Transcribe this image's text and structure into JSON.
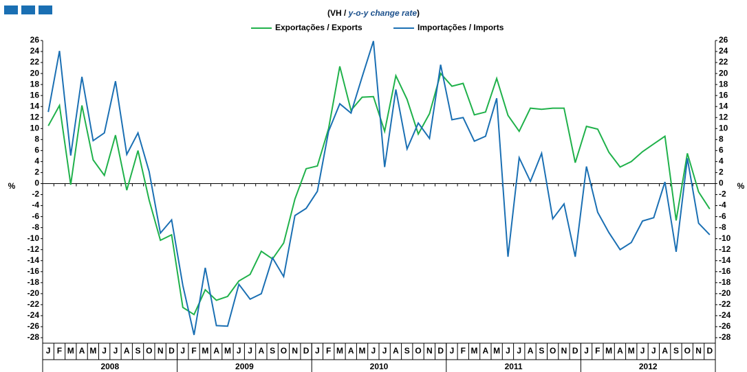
{
  "chart_data": {
    "type": "line",
    "subtitle": [
      "(VH / ",
      "y-o-y change rate",
      ")"
    ],
    "ylabel": "%",
    "y2label": "%",
    "categories": [
      "J",
      "F",
      "M",
      "A",
      "M",
      "J",
      "J",
      "A",
      "S",
      "O",
      "N",
      "D",
      "J",
      "F",
      "M",
      "A",
      "M",
      "J",
      "J",
      "A",
      "S",
      "O",
      "N",
      "D",
      "J",
      "F",
      "M",
      "A",
      "M",
      "J",
      "J",
      "A",
      "S",
      "O",
      "N",
      "D",
      "J",
      "F",
      "M",
      "A",
      "M",
      "J",
      "J",
      "A",
      "S",
      "O",
      "N",
      "D",
      "J",
      "F",
      "M",
      "A",
      "M",
      "J",
      "J",
      "A",
      "S",
      "O",
      "N",
      "D"
    ],
    "years": [
      "2008",
      "2009",
      "2010",
      "2011",
      "2012"
    ],
    "series": [
      {
        "name": "Exportações / Exports",
        "color": "#1fb14a",
        "values": [
          10.5,
          14.2,
          -0.2,
          14.2,
          4.3,
          1.5,
          8.8,
          -1.2,
          6.0,
          -3.0,
          -10.3,
          -9.3,
          -22.5,
          -23.8,
          -19.3,
          -21.2,
          -20.5,
          -17.7,
          -16.5,
          -12.3,
          -13.7,
          -10.8,
          -2.8,
          2.7,
          3.2,
          10.0,
          21.3,
          13.3,
          15.7,
          15.8,
          9.5,
          19.6,
          15.3,
          9.0,
          12.7,
          20.0,
          17.7,
          18.2,
          12.5,
          13.0,
          19.1,
          12.4,
          9.5,
          13.7,
          13.5,
          13.7,
          13.7,
          3.8,
          10.4,
          9.9,
          5.7,
          3.0,
          4.0,
          5.8,
          7.2,
          8.6,
          -6.7,
          5.5,
          -1.5,
          -4.6
        ]
      },
      {
        "name": "Importações / Imports",
        "color": "#1a6fb3",
        "values": [
          13.0,
          24.1,
          5.1,
          19.4,
          7.8,
          9.2,
          18.6,
          5.3,
          9.2,
          2.2,
          -9.0,
          -6.6,
          -18.5,
          -27.5,
          -15.3,
          -25.8,
          -25.9,
          -18.3,
          -21.0,
          -20.0,
          -13.5,
          -16.9,
          -5.8,
          -4.5,
          -1.4,
          9.5,
          14.5,
          12.8,
          19.4,
          25.9,
          3.0,
          17.1,
          6.3,
          11.0,
          8.2,
          21.6,
          11.6,
          12.0,
          7.7,
          8.6,
          15.5,
          -13.3,
          4.7,
          0.4,
          5.5,
          -6.4,
          -3.7,
          -13.3,
          3.1,
          -5.2,
          -8.9,
          -12.0,
          -10.7,
          -6.8,
          -6.2,
          0.3,
          -12.4,
          4.6,
          -7.2,
          -9.3
        ]
      }
    ],
    "ylim": [
      -28,
      26
    ],
    "yticks": [
      -28,
      -26,
      -24,
      -22,
      -20,
      -18,
      -16,
      -14,
      -12,
      -10,
      -8,
      -6,
      -4,
      -2,
      0,
      2,
      4,
      6,
      8,
      10,
      12,
      14,
      16,
      18,
      20,
      22,
      24,
      26
    ],
    "y2lim": [
      -28,
      26
    ],
    "y2ticks": [
      -28,
      -26,
      -24,
      -22,
      -20,
      -18,
      -16,
      -14,
      -12,
      -10,
      -8,
      -6,
      -4,
      -2,
      0,
      2,
      4,
      6,
      8,
      10,
      12,
      14,
      16,
      18,
      20,
      22,
      24,
      26
    ]
  }
}
